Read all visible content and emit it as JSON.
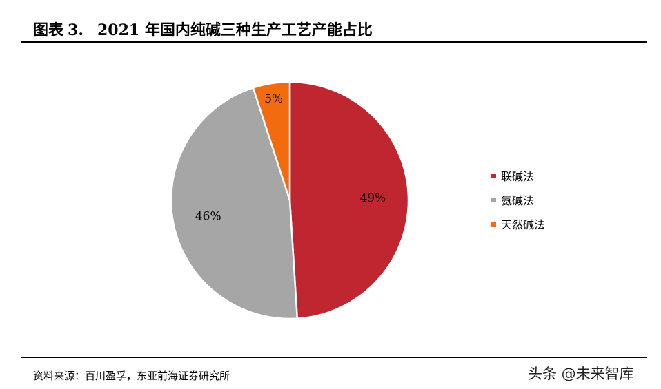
{
  "figure": {
    "label": "图表",
    "number": "3.",
    "title": "2021 年国内纯碱三种生产工艺产能占比"
  },
  "chart_data": {
    "type": "pie",
    "categories": [
      "联碱法",
      "氨碱法",
      "天然碱法"
    ],
    "values": [
      49,
      46,
      5
    ],
    "labels": [
      "49%",
      "46%",
      "5%"
    ],
    "colors": [
      "#c0262f",
      "#a6a6a6",
      "#f26b0f"
    ],
    "start": "12 o'clock, clockwise",
    "legend_position": "right"
  },
  "source": "资料来源：百川盈孚，东亚前海证券研究所",
  "watermark": "头条 @未来智库"
}
